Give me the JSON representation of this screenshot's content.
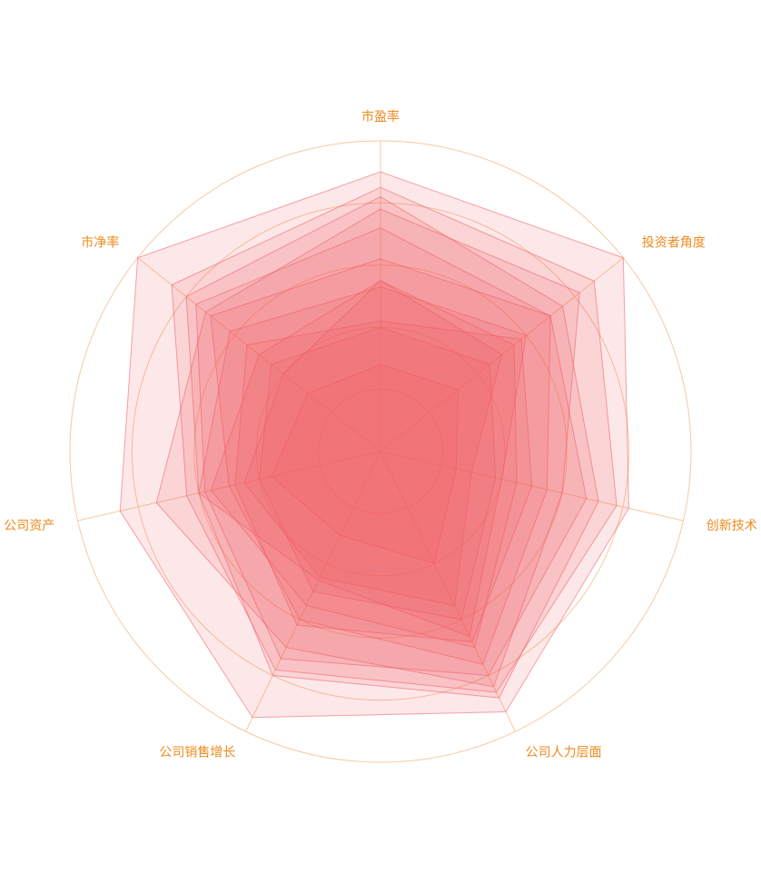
{
  "chart_data": {
    "type": "radar",
    "indicators": [
      "市盈率",
      "投资者角度",
      "创新技术",
      "公司人力层面",
      "公司销售增长",
      "公司资产",
      "市净率"
    ],
    "rlim": [
      0,
      100
    ],
    "rticks": [
      20,
      40,
      60,
      80,
      100
    ],
    "grid_color": "#f8c9a0",
    "label_color": "#ee8a1e",
    "series": [
      {
        "color": "#f05a64",
        "values": [
          90,
          100,
          82,
          93,
          95,
          86,
          100
        ]
      },
      {
        "color": "#f05a64",
        "values": [
          85,
          88,
          78,
          86,
          78,
          64,
          86
        ]
      },
      {
        "color": "#f05a64",
        "values": [
          82,
          75,
          72,
          88,
          80,
          60,
          80
        ]
      },
      {
        "color": "#f05a64",
        "values": [
          78,
          82,
          60,
          84,
          70,
          74,
          72
        ]
      },
      {
        "color": "#f05a64",
        "values": [
          72,
          70,
          68,
          80,
          74,
          58,
          76
        ]
      },
      {
        "color": "#f05a64",
        "values": [
          62,
          70,
          55,
          76,
          60,
          50,
          70
        ]
      },
      {
        "color": "#f05a64",
        "values": [
          42,
          58,
          50,
          68,
          62,
          48,
          55
        ]
      },
      {
        "color": "#f05a64",
        "values": [
          55,
          55,
          45,
          70,
          55,
          56,
          50
        ]
      },
      {
        "color": "#f05a64",
        "values": [
          53,
          60,
          40,
          66,
          46,
          60,
          62
        ]
      },
      {
        "color": "#f05a64",
        "values": [
          55,
          50,
          30,
          55,
          45,
          45,
          40
        ]
      },
      {
        "color": "#f05a64",
        "values": [
          40,
          45,
          38,
          60,
          50,
          40,
          45
        ]
      },
      {
        "color": "#f05a64",
        "values": [
          28,
          32,
          25,
          40,
          30,
          36,
          30
        ]
      }
    ]
  }
}
